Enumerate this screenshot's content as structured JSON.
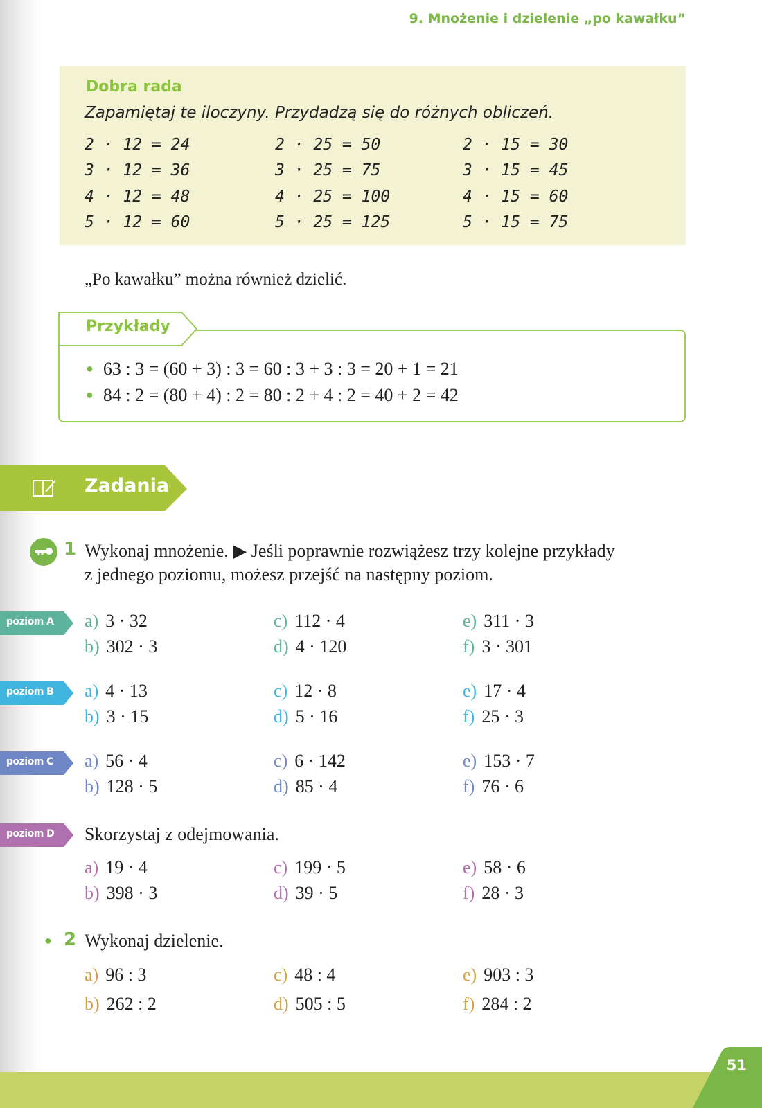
{
  "header": {
    "chapter_title": "9. Mnożenie i dzielenie „po kawałku”"
  },
  "tip": {
    "title": "Dobra rada",
    "text": "Zapamiętaj te iloczyny. Przydadzą się do różnych obliczeń.",
    "columns": [
      [
        "2 · 12 = 24",
        "3 · 12 = 36",
        "4 · 12 = 48",
        "5 · 12 = 60"
      ],
      [
        "2 · 25 = 50",
        "3 · 25 = 75",
        "4 · 25 = 100",
        "5 · 25 = 125"
      ],
      [
        "2 · 15 = 30",
        "3 · 15 = 45",
        "4 · 15 = 60",
        "5 · 15 = 75"
      ]
    ]
  },
  "paragraph": "„Po kawałku” można również dzielić.",
  "examples": {
    "title": "Przykłady",
    "lines": [
      "63 : 3 = (60 + 3) : 3 = 60 : 3 + 3 : 3 = 20 + 1 = 21",
      "84 : 2 = (80 + 4) : 2 = 80 : 2 + 4 : 2 = 40 + 2 = 42"
    ]
  },
  "section": {
    "title": "Zadania",
    "icon": "book-pencil-icon",
    "color": "#a8c43a"
  },
  "task1": {
    "number": "1",
    "icon": "key-icon",
    "line1": "Wykonaj mnożenie. ▶ Jeśli poprawnie rozwiążesz trzy kolejne przykłady",
    "line2": "z jednego poziomu, możesz przejść na następny poziom.",
    "levels": [
      {
        "label": "poziom A",
        "color": "#5db39b",
        "items": [
          [
            "a)",
            "3 · 32"
          ],
          [
            "b)",
            "302 · 3"
          ],
          [
            "c)",
            "112 · 4"
          ],
          [
            "d)",
            "4 · 120"
          ],
          [
            "e)",
            "311 · 3"
          ],
          [
            "f)",
            "3 · 301"
          ]
        ]
      },
      {
        "label": "poziom B",
        "color": "#3fb5e0",
        "items": [
          [
            "a)",
            "4 · 13"
          ],
          [
            "b)",
            "3 · 15"
          ],
          [
            "c)",
            "12 · 8"
          ],
          [
            "d)",
            "5 · 16"
          ],
          [
            "e)",
            "17 · 4"
          ],
          [
            "f)",
            "25 · 3"
          ]
        ]
      },
      {
        "label": "poziom C",
        "color": "#7087c6",
        "items": [
          [
            "a)",
            "56 · 4"
          ],
          [
            "b)",
            "128 · 5"
          ],
          [
            "c)",
            "6 · 142"
          ],
          [
            "d)",
            "85 · 4"
          ],
          [
            "e)",
            "153 · 7"
          ],
          [
            "f)",
            "76 · 6"
          ]
        ]
      },
      {
        "label": "poziom D",
        "color": "#b070ae",
        "instruction": "Skorzystaj z odejmowania.",
        "items": [
          [
            "a)",
            "19 · 4"
          ],
          [
            "b)",
            "398 · 3"
          ],
          [
            "c)",
            "199 · 5"
          ],
          [
            "d)",
            "39 · 5"
          ],
          [
            "e)",
            "58 · 6"
          ],
          [
            "f)",
            "28 · 3"
          ]
        ]
      }
    ]
  },
  "task2": {
    "number": "2",
    "text": "Wykonaj dzielenie.",
    "color": "#d2a14a",
    "items": [
      [
        "a)",
        "96 : 3"
      ],
      [
        "b)",
        "262 : 2"
      ],
      [
        "c)",
        "48 : 4"
      ],
      [
        "d)",
        "505 : 5"
      ],
      [
        "e)",
        "903 : 3"
      ],
      [
        "f)",
        "284 : 2"
      ]
    ]
  },
  "page_number": "51"
}
